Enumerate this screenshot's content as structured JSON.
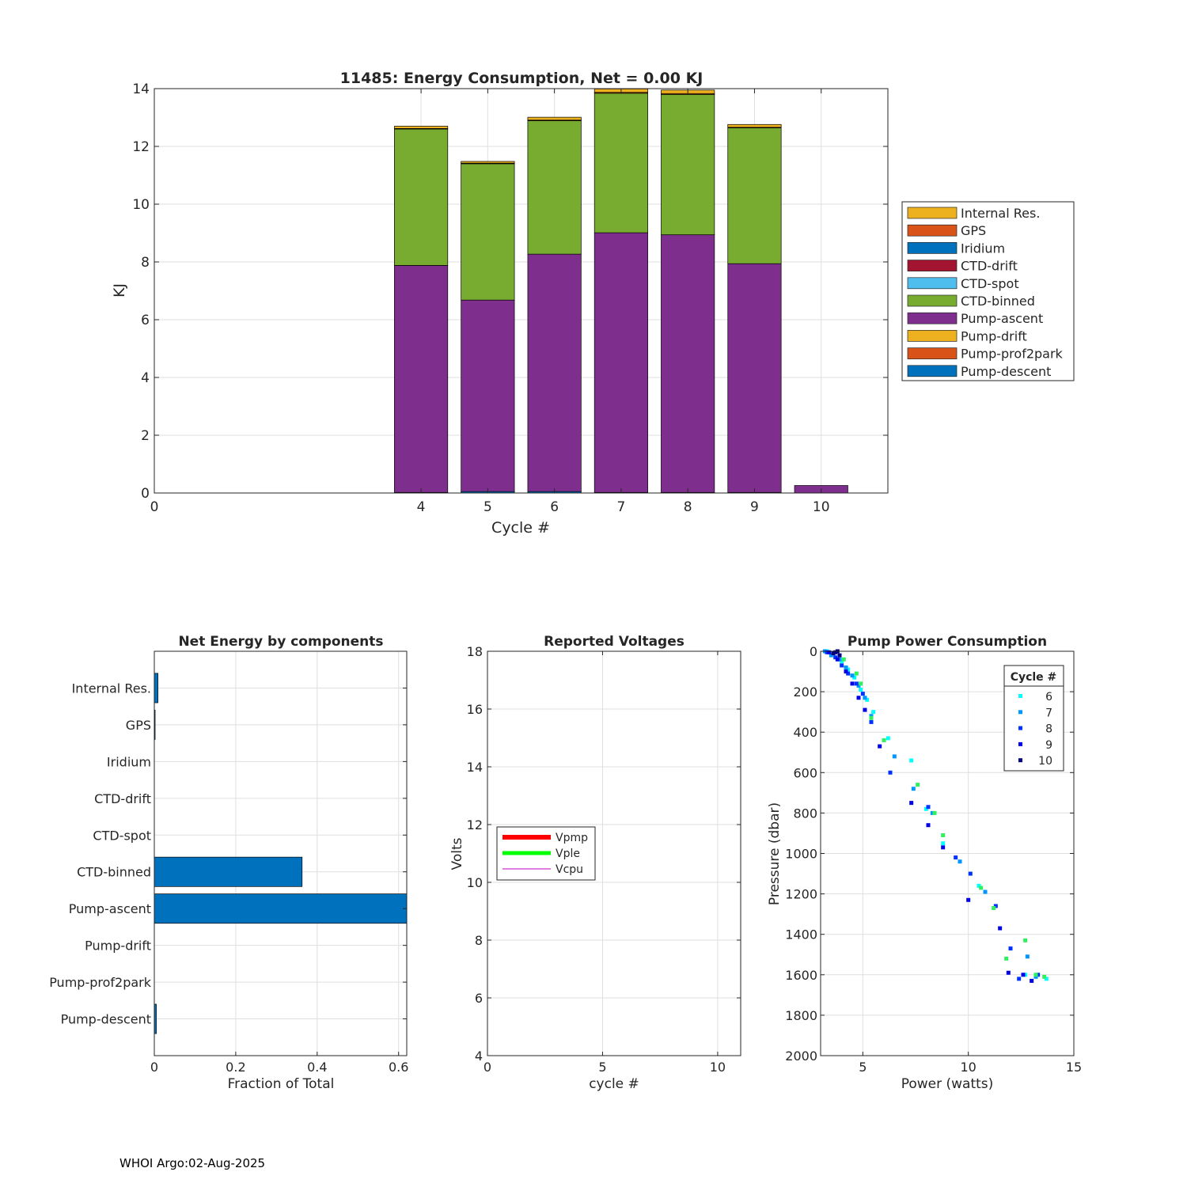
{
  "colors": {
    "Internal Res.": "#edb120",
    "GPS": "#d95319",
    "Iridium": "#0072bd",
    "CTD-drift": "#a2142f",
    "CTD-spot": "#4dbeee",
    "CTD-binned": "#77ac30",
    "Pump-ascent": "#7e2f8e",
    "Pump-drift": "#edb120",
    "Pump-prof2park": "#d95319",
    "Pump-descent": "#0072bd",
    "netbar": "#0072bd",
    "Vpmp": "#ff0000",
    "Vple": "#00ff00",
    "Vcpu": "#bf00bf",
    "cycle6": "#00ffff",
    "cycle7": "#0096ff",
    "cycle8": "#0032ff",
    "cycle9": "#0000e6",
    "cycle10": "#000080",
    "green_pts": "#30f060"
  },
  "chart_data": [
    {
      "id": "energy",
      "type": "bar",
      "stacked": true,
      "title": "11485: Energy Consumption,  Net =   0.00 KJ",
      "xlabel": "Cycle #",
      "ylabel": "KJ",
      "xlim": [
        0,
        11
      ],
      "ylim": [
        0,
        14
      ],
      "xticks": [
        0,
        4,
        5,
        6,
        7,
        8,
        9,
        10
      ],
      "yticks": [
        0,
        2,
        4,
        6,
        8,
        10,
        12,
        14
      ],
      "grid": true,
      "legend_position": "east-outside",
      "categories": [
        4,
        5,
        6,
        7,
        8,
        9,
        10
      ],
      "series": [
        {
          "name": "Pump-descent",
          "values": [
            0.02,
            0.05,
            0.05,
            0.02,
            0.02,
            0.02,
            0.0
          ]
        },
        {
          "name": "Pump-prof2park",
          "values": [
            0,
            0,
            0,
            0,
            0,
            0,
            0
          ]
        },
        {
          "name": "Pump-drift",
          "values": [
            0,
            0,
            0,
            0,
            0,
            0,
            0
          ]
        },
        {
          "name": "Pump-ascent",
          "values": [
            7.86,
            6.63,
            8.22,
            8.99,
            8.92,
            7.92,
            0.26
          ]
        },
        {
          "name": "CTD-binned",
          "values": [
            4.72,
            4.72,
            4.62,
            4.83,
            4.86,
            4.7,
            0.0
          ]
        },
        {
          "name": "CTD-spot",
          "values": [
            0,
            0,
            0,
            0,
            0,
            0,
            0
          ]
        },
        {
          "name": "CTD-drift",
          "values": [
            0,
            0,
            0,
            0,
            0,
            0,
            0
          ]
        },
        {
          "name": "Iridium",
          "values": [
            0,
            0,
            0,
            0,
            0,
            0,
            0
          ]
        },
        {
          "name": "GPS",
          "values": [
            0.02,
            0.02,
            0.02,
            0.03,
            0.03,
            0.02,
            0.0
          ]
        },
        {
          "name": "Internal Res.",
          "values": [
            0.08,
            0.06,
            0.1,
            0.12,
            0.12,
            0.1,
            0.0
          ]
        }
      ],
      "legend": [
        "Internal Res.",
        "GPS",
        "Iridium",
        "CTD-drift",
        "CTD-spot",
        "CTD-binned",
        "Pump-ascent",
        "Pump-drift",
        "Pump-prof2park",
        "Pump-descent"
      ]
    },
    {
      "id": "net",
      "type": "bar",
      "orientation": "horizontal",
      "title": "Net Energy by components",
      "xlabel": "Fraction of Total",
      "xlim": [
        0,
        0.62
      ],
      "xticks": [
        0,
        0.2,
        0.4,
        0.6
      ],
      "xtick_labels": [
        "0",
        "0.2",
        "0.4",
        "0.6"
      ],
      "grid": true,
      "categories": [
        "Internal Res.",
        "GPS",
        "Iridium",
        "CTD-drift",
        "CTD-spot",
        "CTD-binned",
        "Pump-ascent",
        "Pump-drift",
        "Pump-prof2park",
        "Pump-descent"
      ],
      "values": [
        0.009,
        0.002,
        0.0,
        0.0,
        0.0,
        0.363,
        0.625,
        0.0,
        0.0,
        0.005
      ]
    },
    {
      "id": "volts",
      "type": "line",
      "title": "Reported Voltages",
      "xlabel": "cycle #",
      "ylabel": "Volts",
      "xlim": [
        0,
        11
      ],
      "ylim": [
        4,
        18
      ],
      "xticks": [
        0,
        5,
        10
      ],
      "yticks": [
        4,
        6,
        8,
        10,
        12,
        14,
        16,
        18
      ],
      "grid": true,
      "legend_position": "west",
      "series": [
        {
          "name": "Vpmp",
          "values": []
        },
        {
          "name": "Vple",
          "values": []
        },
        {
          "name": "Vcpu",
          "values": []
        }
      ]
    },
    {
      "id": "pump",
      "type": "scatter",
      "title": "Pump Power Consumption",
      "xlabel": "Power (watts)",
      "ylabel": "Pressure (dbar)",
      "xlim": [
        3,
        15
      ],
      "ylim": [
        0,
        2000
      ],
      "y_reversed": true,
      "xticks": [
        5,
        10,
        15
      ],
      "yticks": [
        0,
        200,
        400,
        600,
        800,
        1000,
        1200,
        1400,
        1600,
        1800,
        2000
      ],
      "grid": true,
      "legend_title": "Cycle #",
      "legend_position": "top-right",
      "series": [
        {
          "name": "6",
          "color_key": "cycle6",
          "points": [
            [
              3.3,
              0
            ],
            [
              3.6,
              10
            ],
            [
              4.0,
              50
            ],
            [
              4.3,
              90
            ],
            [
              4.6,
              130
            ],
            [
              4.9,
              190
            ],
            [
              5.2,
              240
            ],
            [
              5.5,
              300
            ],
            [
              6.2,
              430
            ],
            [
              7.3,
              540
            ],
            [
              8.0,
              780
            ],
            [
              8.8,
              950
            ],
            [
              10.5,
              1160
            ],
            [
              12.7,
              1600
            ],
            [
              13.7,
              1620
            ]
          ]
        },
        {
          "name": "7",
          "color_key": "cycle7",
          "points": [
            [
              3.2,
              0
            ],
            [
              3.5,
              20
            ],
            [
              3.9,
              40
            ],
            [
              4.2,
              80
            ],
            [
              4.5,
              120
            ],
            [
              4.8,
              170
            ],
            [
              5.1,
              230
            ],
            [
              5.4,
              320
            ],
            [
              6.5,
              520
            ],
            [
              7.4,
              680
            ],
            [
              8.3,
              800
            ],
            [
              9.6,
              1040
            ],
            [
              10.8,
              1190
            ],
            [
              12.8,
              1510
            ],
            [
              13.2,
              1610
            ]
          ]
        },
        {
          "name": "8",
          "color_key": "cycle8",
          "points": [
            [
              3.3,
              5
            ],
            [
              3.7,
              30
            ],
            [
              4.0,
              70
            ],
            [
              4.3,
              110
            ],
            [
              4.7,
              160
            ],
            [
              5.0,
              210
            ],
            [
              5.4,
              350
            ],
            [
              6.3,
              600
            ],
            [
              8.1,
              770
            ],
            [
              9.4,
              1020
            ],
            [
              10.1,
              1100
            ],
            [
              11.3,
              1260
            ],
            [
              12.0,
              1470
            ],
            [
              12.4,
              1620
            ],
            [
              13.3,
              1600
            ]
          ]
        },
        {
          "name": "9",
          "color_key": "cycle9",
          "points": [
            [
              3.4,
              5
            ],
            [
              3.8,
              40
            ],
            [
              4.2,
              100
            ],
            [
              4.5,
              160
            ],
            [
              4.8,
              230
            ],
            [
              5.1,
              290
            ],
            [
              5.8,
              470
            ],
            [
              7.3,
              750
            ],
            [
              8.1,
              860
            ],
            [
              8.8,
              970
            ],
            [
              10.0,
              1230
            ],
            [
              11.5,
              1370
            ],
            [
              11.9,
              1590
            ],
            [
              12.6,
              1600
            ],
            [
              13.0,
              1630
            ]
          ]
        },
        {
          "name": "10",
          "color_key": "cycle10",
          "points": [
            [
              3.6,
              10
            ],
            [
              3.8,
              0
            ],
            [
              3.9,
              20
            ],
            [
              3.7,
              5
            ]
          ]
        },
        {
          "name": "",
          "color_key": "green_pts",
          "points": [
            [
              4.1,
              40
            ],
            [
              4.7,
              110
            ],
            [
              4.9,
              160
            ],
            [
              5.4,
              330
            ],
            [
              6.0,
              440
            ],
            [
              7.6,
              660
            ],
            [
              8.4,
              800
            ],
            [
              8.8,
              910
            ],
            [
              10.6,
              1170
            ],
            [
              11.2,
              1270
            ],
            [
              11.8,
              1520
            ],
            [
              12.7,
              1430
            ],
            [
              13.2,
              1600
            ],
            [
              13.6,
              1610
            ]
          ]
        }
      ]
    }
  ],
  "footer": "WHOI Argo:02-Aug-2025"
}
